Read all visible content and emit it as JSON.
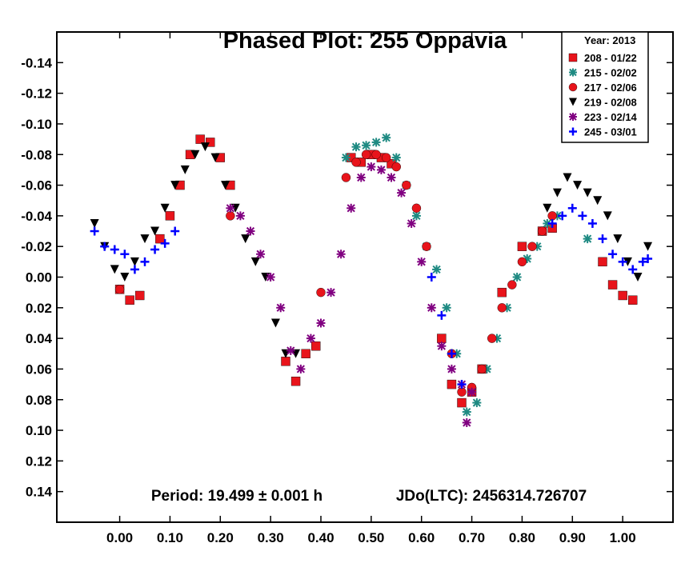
{
  "chart_data": {
    "type": "scatter",
    "title": "Phased Plot: 255 Oppavia",
    "annotations": {
      "period": "Period: 19.499 ± 0.001 h",
      "epoch": "JDo(LTC): 2456314.726707"
    },
    "xlim": [
      -0.125,
      1.1
    ],
    "ylim": [
      -0.16,
      0.16
    ],
    "y_inverted": true,
    "x_ticks": [
      "0.00",
      "0.10",
      "0.20",
      "0.30",
      "0.40",
      "0.50",
      "0.60",
      "0.70",
      "0.80",
      "0.90",
      "1.00"
    ],
    "y_ticks": [
      "-0.14",
      "-0.12",
      "-0.10",
      "-0.08",
      "-0.06",
      "-0.04",
      "-0.02",
      "0.00",
      "0.02",
      "0.04",
      "0.06",
      "0.08",
      "0.10",
      "0.12",
      "0.14"
    ],
    "grid": false,
    "legend": {
      "title": "Year: 2013",
      "placement": "top-right"
    },
    "series": [
      {
        "name": "208 - 01/22",
        "marker": "square",
        "color": "#e8141b",
        "x": [
          0.0,
          0.02,
          0.04,
          0.08,
          0.1,
          0.12,
          0.14,
          0.16,
          0.18,
          0.2,
          0.22,
          0.33,
          0.35,
          0.37,
          0.39,
          0.46,
          0.48,
          0.5,
          0.52,
          0.54,
          0.64,
          0.66,
          0.68,
          0.7,
          0.72,
          0.76,
          0.8,
          0.84,
          0.86,
          0.96,
          0.98,
          1.0,
          1.02
        ],
        "y": [
          0.008,
          0.015,
          0.012,
          -0.025,
          -0.04,
          -0.06,
          -0.08,
          -0.09,
          -0.088,
          -0.078,
          -0.06,
          0.055,
          0.068,
          0.05,
          0.045,
          -0.078,
          -0.075,
          -0.08,
          -0.078,
          -0.074,
          0.04,
          0.07,
          0.082,
          0.075,
          0.06,
          0.01,
          -0.02,
          -0.03,
          -0.032,
          -0.01,
          0.005,
          0.012,
          0.015
        ]
      },
      {
        "name": "215 - 02/02",
        "marker": "asterisk",
        "color": "#1e8a82",
        "x": [
          0.45,
          0.47,
          0.49,
          0.51,
          0.53,
          0.55,
          0.57,
          0.59,
          0.61,
          0.63,
          0.65,
          0.67,
          0.69,
          0.71,
          0.73,
          0.75,
          0.77,
          0.79,
          0.81,
          0.83,
          0.85,
          0.87,
          0.93
        ],
        "y": [
          -0.078,
          -0.085,
          -0.086,
          -0.088,
          -0.091,
          -0.078,
          -0.06,
          -0.04,
          -0.02,
          -0.005,
          0.02,
          0.05,
          0.088,
          0.082,
          0.06,
          0.04,
          0.02,
          0.0,
          -0.012,
          -0.02,
          -0.035,
          -0.04,
          -0.025
        ]
      },
      {
        "name": "217 - 02/06",
        "marker": "circle",
        "color": "#e8141b",
        "x": [
          0.0,
          0.22,
          0.4,
          0.45,
          0.47,
          0.49,
          0.51,
          0.53,
          0.55,
          0.57,
          0.59,
          0.61,
          0.66,
          0.68,
          0.7,
          0.72,
          0.74,
          0.76,
          0.78,
          0.8,
          0.82,
          0.84,
          0.86
        ],
        "y": [
          0.008,
          -0.04,
          0.01,
          -0.065,
          -0.075,
          -0.08,
          -0.08,
          -0.078,
          -0.072,
          -0.06,
          -0.045,
          -0.02,
          0.05,
          0.075,
          0.072,
          0.06,
          0.04,
          0.02,
          0.005,
          -0.01,
          -0.02,
          -0.03,
          -0.04
        ]
      },
      {
        "name": "219 - 02/08",
        "marker": "triangle-down",
        "color": "#000000",
        "x": [
          -0.05,
          -0.03,
          -0.01,
          0.01,
          0.03,
          0.05,
          0.07,
          0.09,
          0.11,
          0.13,
          0.15,
          0.17,
          0.19,
          0.21,
          0.23,
          0.25,
          0.27,
          0.29,
          0.31,
          0.33,
          0.35,
          0.85,
          0.87,
          0.89,
          0.91,
          0.93,
          0.95,
          0.97,
          0.99,
          1.01,
          1.03,
          1.05
        ],
        "y": [
          -0.035,
          -0.02,
          -0.005,
          0.0,
          -0.01,
          -0.025,
          -0.03,
          -0.045,
          -0.06,
          -0.07,
          -0.08,
          -0.085,
          -0.078,
          -0.06,
          -0.045,
          -0.025,
          -0.01,
          0.0,
          0.03,
          0.05,
          0.05,
          -0.045,
          -0.055,
          -0.065,
          -0.06,
          -0.055,
          -0.05,
          -0.04,
          -0.025,
          -0.01,
          0.0,
          -0.02
        ]
      },
      {
        "name": "223 - 02/14",
        "marker": "asterisk",
        "color": "#800080",
        "x": [
          0.22,
          0.24,
          0.26,
          0.28,
          0.3,
          0.32,
          0.34,
          0.36,
          0.38,
          0.4,
          0.42,
          0.44,
          0.46,
          0.48,
          0.5,
          0.52,
          0.54,
          0.56,
          0.58,
          0.6,
          0.62,
          0.64,
          0.66,
          0.68,
          0.69,
          0.7
        ],
        "y": [
          -0.045,
          -0.04,
          -0.03,
          -0.015,
          0.0,
          0.02,
          0.048,
          0.06,
          0.04,
          0.03,
          0.01,
          -0.015,
          -0.045,
          -0.065,
          -0.072,
          -0.07,
          -0.065,
          -0.055,
          -0.035,
          -0.01,
          0.02,
          0.045,
          0.06,
          0.07,
          0.095,
          0.075
        ]
      },
      {
        "name": "245 - 03/01",
        "marker": "plus",
        "color": "#0000ff",
        "x": [
          -0.05,
          -0.03,
          -0.01,
          0.01,
          0.03,
          0.05,
          0.07,
          0.09,
          0.11,
          0.62,
          0.64,
          0.66,
          0.68,
          0.86,
          0.88,
          0.9,
          0.92,
          0.94,
          0.96,
          0.98,
          1.0,
          1.02,
          1.04,
          1.05
        ],
        "y": [
          -0.03,
          -0.02,
          -0.018,
          -0.015,
          -0.005,
          -0.01,
          -0.018,
          -0.022,
          -0.03,
          0.0,
          0.025,
          0.05,
          0.07,
          -0.035,
          -0.04,
          -0.045,
          -0.04,
          -0.035,
          -0.025,
          -0.015,
          -0.01,
          -0.005,
          -0.01,
          -0.012
        ]
      }
    ]
  }
}
